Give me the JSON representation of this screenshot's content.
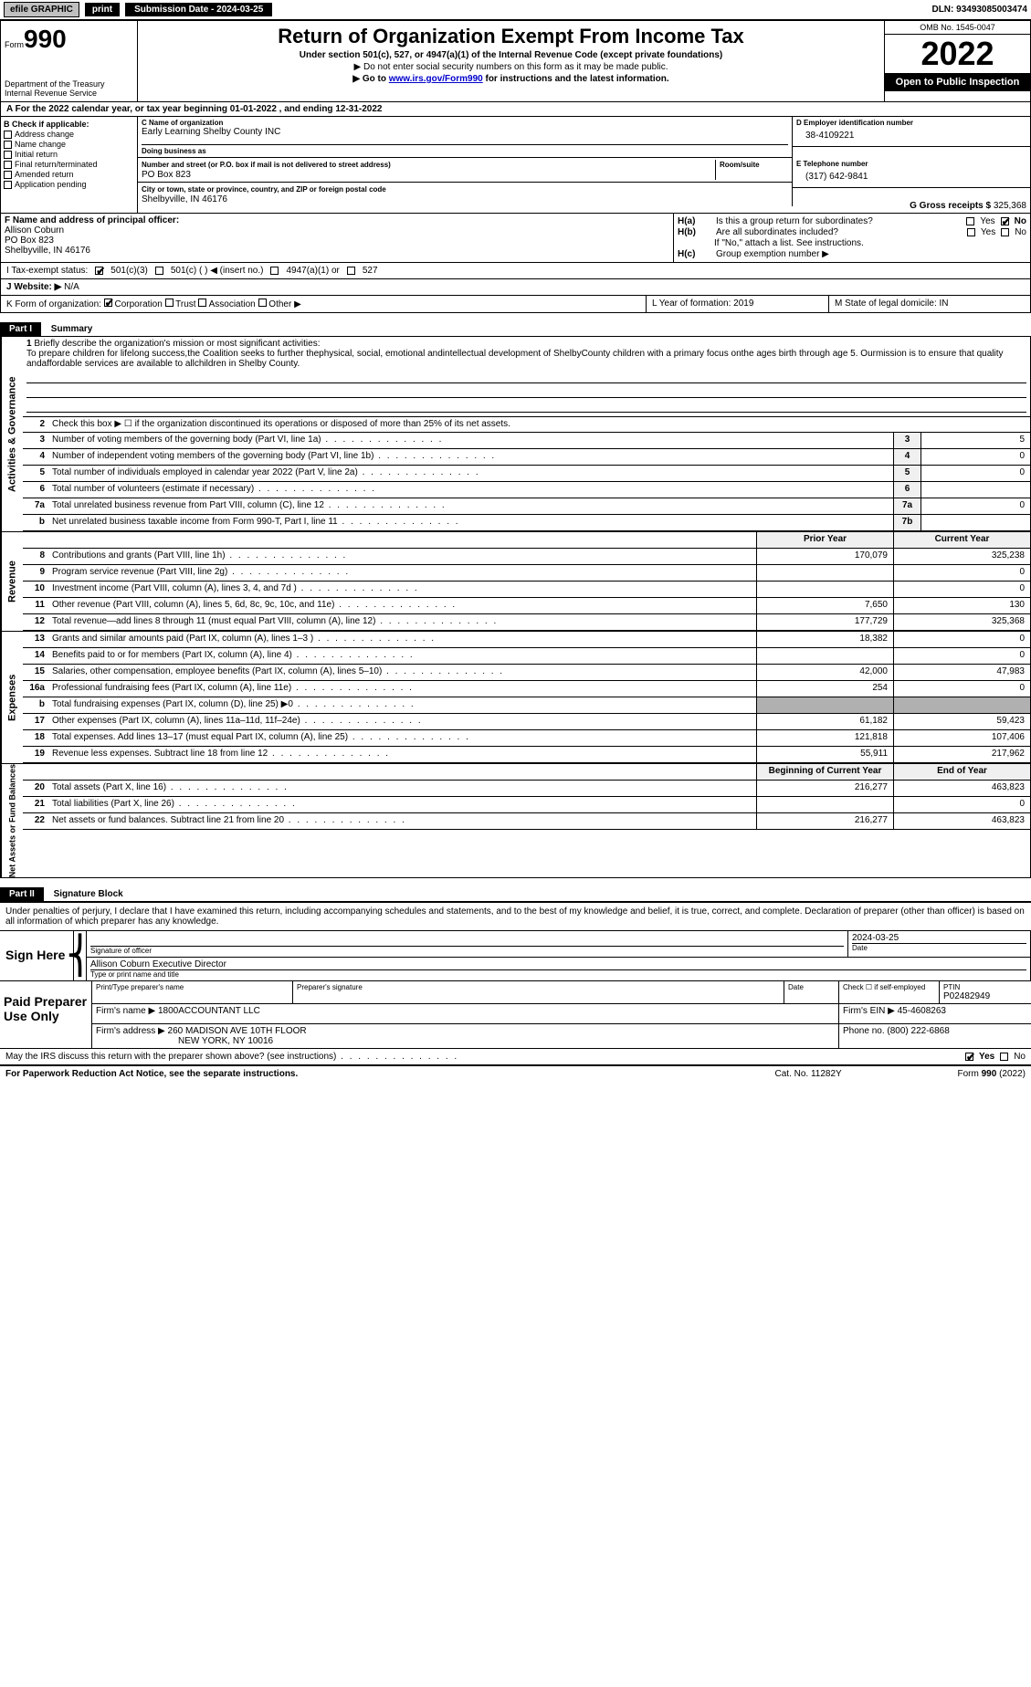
{
  "topbar": {
    "efile": "efile GRAPHIC",
    "print": "print",
    "subdate_label": "Submission Date - 2024-03-25",
    "dln": "DLN: 93493085003474"
  },
  "header": {
    "form_word": "Form",
    "form_num": "990",
    "title": "Return of Organization Exempt From Income Tax",
    "subtitle": "Under section 501(c), 527, or 4947(a)(1) of the Internal Revenue Code (except private foundations)",
    "note1": "▶ Do not enter social security numbers on this form as it may be made public.",
    "note2_pre": "▶ Go to ",
    "note2_link": "www.irs.gov/Form990",
    "note2_post": " for instructions and the latest information.",
    "dept": "Department of the Treasury",
    "irs": "Internal Revenue Service",
    "omb": "OMB No. 1545-0047",
    "year": "2022",
    "open_pub": "Open to Public Inspection"
  },
  "row_a": "A For the 2022 calendar year, or tax year beginning 01-01-2022    , and ending 12-31-2022",
  "col_b": {
    "heading": "B Check if applicable:",
    "items": [
      "Address change",
      "Name change",
      "Initial return",
      "Final return/terminated",
      "Amended return",
      "Application pending"
    ]
  },
  "col_c": {
    "name_label": "C Name of organization",
    "name": "Early Learning Shelby County INC",
    "dba_label": "Doing business as",
    "dba": "",
    "street_label": "Number and street (or P.O. box if mail is not delivered to street address)",
    "room_label": "Room/suite",
    "street": "PO Box 823",
    "city_label": "City or town, state or province, country, and ZIP or foreign postal code",
    "city": "Shelbyville, IN  46176"
  },
  "col_d": {
    "label": "D Employer identification number",
    "value": "38-4109221"
  },
  "col_e": {
    "label": "E Telephone number",
    "value": "(317) 642-9841"
  },
  "col_g": {
    "label": "G Gross receipts $",
    "value": "325,368"
  },
  "col_f": {
    "label": "F  Name and address of principal officer:",
    "name": "Allison Coburn",
    "street": "PO Box 823",
    "city": "Shelbyville, IN  46176"
  },
  "col_h": {
    "a": "Is this a group return for subordinates?",
    "b": "Are all subordinates included?",
    "ifno": "If \"No,\" attach a list. See instructions.",
    "c": "Group exemption number ▶"
  },
  "tax_status": {
    "label": "I    Tax-exempt status:",
    "opts": [
      "501(c)(3)",
      "501(c) (  ) ◀ (insert no.)",
      "4947(a)(1) or",
      "527"
    ]
  },
  "website": {
    "label": "J   Website: ▶",
    "value": "N/A"
  },
  "row_k": {
    "label": "K Form of organization:",
    "opts": [
      "Corporation",
      "Trust",
      "Association",
      "Other ▶"
    ],
    "l": "L Year of formation: 2019",
    "m": "M State of legal domicile: IN"
  },
  "parts": {
    "p1": "Part I",
    "p1_title": "Summary",
    "p2": "Part II",
    "p2_title": "Signature Block"
  },
  "summary": {
    "q1": "Briefly describe the organization's mission or most significant activities:",
    "mission": "To prepare children for lifelong success,the Coalition seeks to further thephysical, social, emotional andintellectual development of ShelbyCounty children with a primary focus onthe ages birth through age 5. Ourmission is to ensure that quality andaffordable services are available to allchildren in Shelby County.",
    "q2": "Check this box ▶ ☐  if the organization discontinued its operations or disposed of more than 25% of its net assets.",
    "lines_num": [
      {
        "n": "3",
        "t": "Number of voting members of the governing body (Part VI, line 1a)",
        "box": "3",
        "v": "5"
      },
      {
        "n": "4",
        "t": "Number of independent voting members of the governing body (Part VI, line 1b)",
        "box": "4",
        "v": "0"
      },
      {
        "n": "5",
        "t": "Total number of individuals employed in calendar year 2022 (Part V, line 2a)",
        "box": "5",
        "v": "0"
      },
      {
        "n": "6",
        "t": "Total number of volunteers (estimate if necessary)",
        "box": "6",
        "v": ""
      },
      {
        "n": "7a",
        "t": "Total unrelated business revenue from Part VIII, column (C), line 12",
        "box": "7a",
        "v": "0"
      },
      {
        "n": "b",
        "t": "Net unrelated business taxable income from Form 990-T, Part I, line 11",
        "box": "7b",
        "v": ""
      }
    ],
    "hdr_prior": "Prior Year",
    "hdr_curr": "Current Year",
    "revenue": [
      {
        "n": "8",
        "t": "Contributions and grants (Part VIII, line 1h)",
        "p": "170,079",
        "c": "325,238"
      },
      {
        "n": "9",
        "t": "Program service revenue (Part VIII, line 2g)",
        "p": "",
        "c": "0"
      },
      {
        "n": "10",
        "t": "Investment income (Part VIII, column (A), lines 3, 4, and 7d )",
        "p": "",
        "c": "0"
      },
      {
        "n": "11",
        "t": "Other revenue (Part VIII, column (A), lines 5, 6d, 8c, 9c, 10c, and 11e)",
        "p": "7,650",
        "c": "130"
      },
      {
        "n": "12",
        "t": "Total revenue—add lines 8 through 11 (must equal Part VIII, column (A), line 12)",
        "p": "177,729",
        "c": "325,368"
      }
    ],
    "expenses": [
      {
        "n": "13",
        "t": "Grants and similar amounts paid (Part IX, column (A), lines 1–3 )",
        "p": "18,382",
        "c": "0"
      },
      {
        "n": "14",
        "t": "Benefits paid to or for members (Part IX, column (A), line 4)",
        "p": "",
        "c": "0"
      },
      {
        "n": "15",
        "t": "Salaries, other compensation, employee benefits (Part IX, column (A), lines 5–10)",
        "p": "42,000",
        "c": "47,983"
      },
      {
        "n": "16a",
        "t": "Professional fundraising fees (Part IX, column (A), line 11e)",
        "p": "254",
        "c": "0"
      },
      {
        "n": "b",
        "t": "Total fundraising expenses (Part IX, column (D), line 25) ▶0",
        "p": "SHADE",
        "c": "SHADE"
      },
      {
        "n": "17",
        "t": "Other expenses (Part IX, column (A), lines 11a–11d, 11f–24e)",
        "p": "61,182",
        "c": "59,423"
      },
      {
        "n": "18",
        "t": "Total expenses. Add lines 13–17 (must equal Part IX, column (A), line 25)",
        "p": "121,818",
        "c": "107,406"
      },
      {
        "n": "19",
        "t": "Revenue less expenses. Subtract line 18 from line 12",
        "p": "55,911",
        "c": "217,962"
      }
    ],
    "hdr_begin": "Beginning of Current Year",
    "hdr_end": "End of Year",
    "netassets": [
      {
        "n": "20",
        "t": "Total assets (Part X, line 16)",
        "p": "216,277",
        "c": "463,823"
      },
      {
        "n": "21",
        "t": "Total liabilities (Part X, line 26)",
        "p": "",
        "c": "0"
      },
      {
        "n": "22",
        "t": "Net assets or fund balances. Subtract line 21 from line 20",
        "p": "216,277",
        "c": "463,823"
      }
    ],
    "vtabs": {
      "gov": "Activities & Governance",
      "rev": "Revenue",
      "exp": "Expenses",
      "net": "Net Assets or Fund Balances"
    }
  },
  "sig": {
    "intro": "Under penalties of perjury, I declare that I have examined this return, including accompanying schedules and statements, and to the best of my knowledge and belief, it is true, correct, and complete. Declaration of preparer (other than officer) is based on all information of which preparer has any knowledge.",
    "sign_here": "Sign Here",
    "sig_officer": "Signature of officer",
    "date": "Date",
    "date_val": "2024-03-25",
    "name": "Allison Coburn  Executive Director",
    "name_label": "Type or print name and title"
  },
  "paid": {
    "title": "Paid Preparer Use Only",
    "h_name": "Print/Type preparer's name",
    "h_sig": "Preparer's signature",
    "h_date": "Date",
    "h_check": "Check ☐ if self-employed",
    "h_ptin": "PTIN",
    "ptin": "P02482949",
    "firm_name_l": "Firm's name    ▶",
    "firm_name": "1800ACCOUNTANT LLC",
    "firm_ein_l": "Firm's EIN ▶",
    "firm_ein": "45-4608263",
    "firm_addr_l": "Firm's address ▶",
    "firm_addr1": "260 MADISON AVE 10TH FLOOR",
    "firm_addr2": "NEW YORK, NY  10016",
    "phone_l": "Phone no.",
    "phone": "(800) 222-6868"
  },
  "discuss": "May the IRS discuss this return with the preparer shown above? (see instructions)",
  "footer": {
    "left": "For Paperwork Reduction Act Notice, see the separate instructions.",
    "mid": "Cat. No. 11282Y",
    "right": "Form 990 (2022)"
  }
}
